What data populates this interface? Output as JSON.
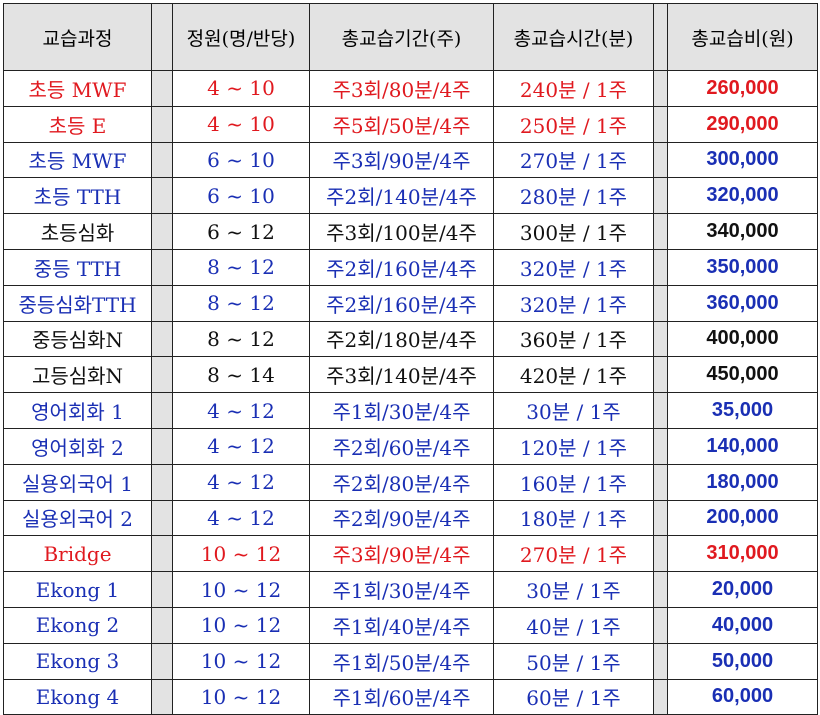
{
  "headers": {
    "course": "교습과정",
    "capacity": "정원(명/반당)",
    "period": "총교습기간(주)",
    "hours": "총교습시간(분)",
    "fee": "총교습비(원)"
  },
  "colors": {
    "red": "#e0191f",
    "blue": "#1a2fb4",
    "black": "#111111",
    "header_bg": "#e3e3e3"
  },
  "rows": [
    {
      "course": "초등 MWF",
      "capacity": "4 ~ 10",
      "period": "주3회/80분/4주",
      "hours": "240분 / 1주",
      "fee": "260,000",
      "color": "red"
    },
    {
      "course": "초등 E",
      "capacity": "4 ~ 10",
      "period": "주5회/50분/4주",
      "hours": "250분 / 1주",
      "fee": "290,000",
      "color": "red"
    },
    {
      "course": "초등 MWF",
      "capacity": "6 ~ 10",
      "period": "주3회/90분/4주",
      "hours": "270분 / 1주",
      "fee": "300,000",
      "color": "blue"
    },
    {
      "course": "초등 TTH",
      "capacity": "6 ~ 10",
      "period": "주2회/140분/4주",
      "hours": "280분 / 1주",
      "fee": "320,000",
      "color": "blue"
    },
    {
      "course": "초등심화",
      "capacity": "6 ~ 12",
      "period": "주3회/100분/4주",
      "hours": "300분 / 1주",
      "fee": "340,000",
      "color": "black"
    },
    {
      "course": "중등 TTH",
      "capacity": "8 ~ 12",
      "period": "주2회/160분/4주",
      "hours": "320분 / 1주",
      "fee": "350,000",
      "color": "blue"
    },
    {
      "course": "중등심화TTH",
      "capacity": "8 ~ 12",
      "period": "주2회/160분/4주",
      "hours": "320분 / 1주",
      "fee": "360,000",
      "color": "blue"
    },
    {
      "course": "중등심화N",
      "capacity": "8 ~ 12",
      "period": "주2회/180분/4주",
      "hours": "360분 / 1주",
      "fee": "400,000",
      "color": "black"
    },
    {
      "course": "고등심화N",
      "capacity": "8 ~ 14",
      "period": "주3회/140분/4주",
      "hours": "420분 / 1주",
      "fee": "450,000",
      "color": "black"
    },
    {
      "course": "영어회화 1",
      "capacity": "4 ~ 12",
      "period": "주1회/30분/4주",
      "hours": "30분 / 1주",
      "fee": "35,000",
      "color": "blue"
    },
    {
      "course": "영어회화 2",
      "capacity": "4 ~ 12",
      "period": "주2회/60분/4주",
      "hours": "120분 / 1주",
      "fee": "140,000",
      "color": "blue"
    },
    {
      "course": "실용외국어 1",
      "capacity": "4 ~ 12",
      "period": "주2회/80분/4주",
      "hours": "160분 / 1주",
      "fee": "180,000",
      "color": "blue"
    },
    {
      "course": "실용외국어 2",
      "capacity": "4 ~ 12",
      "period": "주2회/90분/4주",
      "hours": "180분 / 1주",
      "fee": "200,000",
      "color": "blue"
    },
    {
      "course": "Bridge",
      "capacity": "10 ~ 12",
      "period": "주3회/90분/4주",
      "hours": "270분 / 1주",
      "fee": "310,000",
      "color": "red"
    },
    {
      "course": "Ekong 1",
      "capacity": "10 ~ 12",
      "period": "주1회/30분/4주",
      "hours": "30분 / 1주",
      "fee": "20,000",
      "color": "blue"
    },
    {
      "course": "Ekong 2",
      "capacity": "10 ~ 12",
      "period": "주1회/40분/4주",
      "hours": "40분 / 1주",
      "fee": "40,000",
      "color": "blue"
    },
    {
      "course": "Ekong 3",
      "capacity": "10 ~ 12",
      "period": "주1회/50분/4주",
      "hours": "50분 / 1주",
      "fee": "50,000",
      "color": "blue"
    },
    {
      "course": "Ekong 4",
      "capacity": "10 ~ 12",
      "period": "주1회/60분/4주",
      "hours": "60분 / 1주",
      "fee": "60,000",
      "color": "blue"
    }
  ]
}
